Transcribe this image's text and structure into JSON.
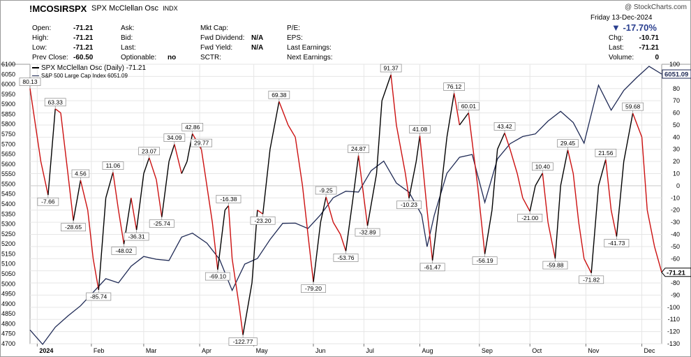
{
  "header": {
    "symbol": "!MCOSIRSPX",
    "description": "SPX McClellan Osc",
    "exchange": "INDX",
    "watermark": "@ StockCharts.com",
    "date": "Friday  13-Dec-2024",
    "change_pct": "▼ -17.70%",
    "col1": [
      {
        "label": "Open:",
        "value": "-71.21"
      },
      {
        "label": "High:",
        "value": "-71.21"
      },
      {
        "label": "Low:",
        "value": "-71.21"
      },
      {
        "label": "Prev Close:",
        "value": "-60.50"
      }
    ],
    "col2": [
      {
        "label": "Ask:",
        "value": ""
      },
      {
        "label": "Bid:",
        "value": ""
      },
      {
        "label": "Last:",
        "value": ""
      },
      {
        "label": "Optionable:",
        "value": "no"
      }
    ],
    "col3": [
      {
        "label": "Mkt Cap:",
        "value": ""
      },
      {
        "label": "Fwd Dividend:",
        "value": "N/A"
      },
      {
        "label": "Fwd Yield:",
        "value": "N/A"
      },
      {
        "label": "SCTR:",
        "value": ""
      }
    ],
    "col4": [
      {
        "label": "P/E:"
      },
      {
        "label": "EPS:"
      },
      {
        "label": "Last Earnings:"
      },
      {
        "label": "Next Earnings:"
      }
    ],
    "col5": [
      {
        "label": "Chg:",
        "value": "-10.71"
      },
      {
        "label": "Last:",
        "value": "-71.21"
      },
      {
        "label": "Volume:",
        "value": "0"
      }
    ]
  },
  "legend": {
    "osc": "SPX McClellan Osc (Daily) -71.21",
    "spx": "S&P 500 Large Cap Index 6051.09"
  },
  "colors": {
    "up": "#000000",
    "down": "#cc1010",
    "spx": "#1f2a55",
    "grid": "#e6e6e6"
  },
  "chart_data": {
    "type": "line",
    "x_labels": [
      "2024",
      "Feb",
      "Mar",
      "Apr",
      "May",
      "Jun",
      "Jul",
      "Aug",
      "Sep",
      "Oct",
      "Nov",
      "Dec"
    ],
    "y_right": {
      "range": [
        -130,
        100
      ],
      "ticks": [
        100,
        90,
        80,
        70,
        60,
        50,
        40,
        30,
        20,
        10,
        0,
        -10,
        -20,
        -30,
        -40,
        -50,
        -60,
        -70,
        -80,
        -90,
        -100,
        -110,
        -120,
        -130
      ]
    },
    "y_left": {
      "range": [
        4700,
        6100
      ],
      "ticks": [
        6100,
        6050,
        6000,
        5950,
        5900,
        5850,
        5800,
        5750,
        5700,
        5650,
        5600,
        5550,
        5500,
        5450,
        5400,
        5350,
        5300,
        5250,
        5200,
        5150,
        5100,
        5050,
        5000,
        4950,
        4900,
        4850,
        4800,
        4750,
        4700
      ]
    },
    "series": [
      {
        "name": "SPX McClellan Osc (Daily)",
        "last_label": "-71.21",
        "points": [
          [
            "2023-12-29",
            80.13
          ],
          [
            "2024-01-04",
            20
          ],
          [
            "2024-01-08",
            -7.66
          ],
          [
            "2024-01-12",
            63.33
          ],
          [
            "2024-01-15",
            60
          ],
          [
            "2024-01-19",
            10
          ],
          [
            "2024-01-22",
            -28.65
          ],
          [
            "2024-01-26",
            4.56
          ],
          [
            "2024-01-30",
            -20
          ],
          [
            "2024-02-02",
            -60
          ],
          [
            "2024-02-05",
            -85.74
          ],
          [
            "2024-02-09",
            -10
          ],
          [
            "2024-02-13",
            11.06
          ],
          [
            "2024-02-16",
            -20
          ],
          [
            "2024-02-19",
            -48.02
          ],
          [
            "2024-02-23",
            -10
          ],
          [
            "2024-02-26",
            -36.31
          ],
          [
            "2024-03-01",
            10
          ],
          [
            "2024-03-04",
            23.07
          ],
          [
            "2024-03-08",
            5
          ],
          [
            "2024-03-11",
            -25.74
          ],
          [
            "2024-03-15",
            20
          ],
          [
            "2024-03-18",
            34.09
          ],
          [
            "2024-03-22",
            10
          ],
          [
            "2024-03-25",
            20
          ],
          [
            "2024-03-28",
            42.86
          ],
          [
            "2024-04-02",
            29.77
          ],
          [
            "2024-04-04",
            10
          ],
          [
            "2024-04-08",
            -30
          ],
          [
            "2024-04-11",
            -69.1
          ],
          [
            "2024-04-15",
            -20
          ],
          [
            "2024-04-17",
            -16.38
          ],
          [
            "2024-04-19",
            -60
          ],
          [
            "2024-04-23",
            -100
          ],
          [
            "2024-04-25",
            -122.77
          ],
          [
            "2024-04-30",
            -80
          ],
          [
            "2024-05-03",
            -20
          ],
          [
            "2024-05-06",
            -23.2
          ],
          [
            "2024-05-10",
            30
          ],
          [
            "2024-05-15",
            69.38
          ],
          [
            "2024-05-20",
            50
          ],
          [
            "2024-05-24",
            40
          ],
          [
            "2024-05-28",
            0
          ],
          [
            "2024-05-31",
            -40
          ],
          [
            "2024-06-03",
            -79.2
          ],
          [
            "2024-06-07",
            -30
          ],
          [
            "2024-06-10",
            -9.25
          ],
          [
            "2024-06-14",
            -30
          ],
          [
            "2024-06-18",
            -40
          ],
          [
            "2024-06-21",
            -53.76
          ],
          [
            "2024-06-25",
            -10
          ],
          [
            "2024-06-28",
            24.87
          ],
          [
            "2024-07-01",
            -10
          ],
          [
            "2024-07-03",
            -32.89
          ],
          [
            "2024-07-08",
            10
          ],
          [
            "2024-07-11",
            70
          ],
          [
            "2024-07-16",
            91.37
          ],
          [
            "2024-07-19",
            50
          ],
          [
            "2024-07-24",
            10
          ],
          [
            "2024-07-26",
            -10.23
          ],
          [
            "2024-07-30",
            20
          ],
          [
            "2024-08-01",
            41.08
          ],
          [
            "2024-08-05",
            -20
          ],
          [
            "2024-08-08",
            -61.47
          ],
          [
            "2024-08-13",
            0
          ],
          [
            "2024-08-16",
            40
          ],
          [
            "2024-08-20",
            76.12
          ],
          [
            "2024-08-23",
            50
          ],
          [
            "2024-08-28",
            60.01
          ],
          [
            "2024-09-02",
            0
          ],
          [
            "2024-09-06",
            -56.19
          ],
          [
            "2024-09-10",
            -20
          ],
          [
            "2024-09-13",
            30
          ],
          [
            "2024-09-17",
            43.42
          ],
          [
            "2024-09-20",
            30
          ],
          [
            "2024-09-24",
            10
          ],
          [
            "2024-09-27",
            -10
          ],
          [
            "2024-10-01",
            -21.0
          ],
          [
            "2024-10-04",
            0
          ],
          [
            "2024-10-08",
            10.4
          ],
          [
            "2024-10-11",
            -30
          ],
          [
            "2024-10-15",
            -59.88
          ],
          [
            "2024-10-18",
            0
          ],
          [
            "2024-10-22",
            29.45
          ],
          [
            "2024-10-25",
            10
          ],
          [
            "2024-10-28",
            -30
          ],
          [
            "2024-10-31",
            -60
          ],
          [
            "2024-11-04",
            -71.82
          ],
          [
            "2024-11-08",
            0
          ],
          [
            "2024-11-12",
            21.56
          ],
          [
            "2024-11-15",
            -20
          ],
          [
            "2024-11-18",
            -41.73
          ],
          [
            "2024-11-22",
            20
          ],
          [
            "2024-11-27",
            59.68
          ],
          [
            "2024-12-02",
            40
          ],
          [
            "2024-12-05",
            -20
          ],
          [
            "2024-12-09",
            -50
          ],
          [
            "2024-12-13",
            -71.21
          ]
        ]
      },
      {
        "name": "S&P 500 Large Cap Index",
        "last_label": "6051.09",
        "points": [
          [
            "2023-12-29",
            4769
          ],
          [
            "2024-01-05",
            4697
          ],
          [
            "2024-01-12",
            4783
          ],
          [
            "2024-01-19",
            4839
          ],
          [
            "2024-01-26",
            4890
          ],
          [
            "2024-02-02",
            4958
          ],
          [
            "2024-02-09",
            5026
          ],
          [
            "2024-02-16",
            5005
          ],
          [
            "2024-02-23",
            5088
          ],
          [
            "2024-03-01",
            5137
          ],
          [
            "2024-03-08",
            5123
          ],
          [
            "2024-03-15",
            5117
          ],
          [
            "2024-03-22",
            5234
          ],
          [
            "2024-03-28",
            5254
          ],
          [
            "2024-04-05",
            5204
          ],
          [
            "2024-04-12",
            5123
          ],
          [
            "2024-04-19",
            4967
          ],
          [
            "2024-04-26",
            5099
          ],
          [
            "2024-05-03",
            5127
          ],
          [
            "2024-05-10",
            5222
          ],
          [
            "2024-05-17",
            5303
          ],
          [
            "2024-05-24",
            5304
          ],
          [
            "2024-05-31",
            5277
          ],
          [
            "2024-06-07",
            5346
          ],
          [
            "2024-06-14",
            5431
          ],
          [
            "2024-06-21",
            5464
          ],
          [
            "2024-06-28",
            5460
          ],
          [
            "2024-07-05",
            5567
          ],
          [
            "2024-07-12",
            5615
          ],
          [
            "2024-07-19",
            5505
          ],
          [
            "2024-07-26",
            5459
          ],
          [
            "2024-08-02",
            5346
          ],
          [
            "2024-08-05",
            5186
          ],
          [
            "2024-08-09",
            5344
          ],
          [
            "2024-08-16",
            5554
          ],
          [
            "2024-08-23",
            5634
          ],
          [
            "2024-08-30",
            5648
          ],
          [
            "2024-09-06",
            5408
          ],
          [
            "2024-09-13",
            5626
          ],
          [
            "2024-09-20",
            5702
          ],
          [
            "2024-09-27",
            5738
          ],
          [
            "2024-10-04",
            5751
          ],
          [
            "2024-10-11",
            5815
          ],
          [
            "2024-10-18",
            5864
          ],
          [
            "2024-10-25",
            5808
          ],
          [
            "2024-10-31",
            5705
          ],
          [
            "2024-11-08",
            5995
          ],
          [
            "2024-11-15",
            5870
          ],
          [
            "2024-11-22",
            5969
          ],
          [
            "2024-11-29",
            6032
          ],
          [
            "2024-12-06",
            6090
          ],
          [
            "2024-12-13",
            6051
          ]
        ]
      }
    ],
    "annotations": [
      {
        "date": "2023-12-29",
        "value": 80.13,
        "label": "80.13",
        "pos": "above"
      },
      {
        "date": "2024-01-08",
        "value": -7.66,
        "label": "-7.66",
        "pos": "below"
      },
      {
        "date": "2024-01-12",
        "value": 63.33,
        "label": "63.33",
        "pos": "above"
      },
      {
        "date": "2024-01-22",
        "value": -28.65,
        "label": "-28.65",
        "pos": "below"
      },
      {
        "date": "2024-01-26",
        "value": 4.56,
        "label": "4.56",
        "pos": "above"
      },
      {
        "date": "2024-02-05",
        "value": -85.74,
        "label": "-85.74",
        "pos": "below"
      },
      {
        "date": "2024-02-13",
        "value": 11.06,
        "label": "11.06",
        "pos": "above"
      },
      {
        "date": "2024-02-19",
        "value": -48.02,
        "label": "-48.02",
        "pos": "below"
      },
      {
        "date": "2024-02-26",
        "value": -36.31,
        "label": "-36.31",
        "pos": "below"
      },
      {
        "date": "2024-03-04",
        "value": 23.07,
        "label": "23.07",
        "pos": "above"
      },
      {
        "date": "2024-03-11",
        "value": -25.74,
        "label": "-25.74",
        "pos": "below"
      },
      {
        "date": "2024-03-18",
        "value": 34.09,
        "label": "34.09",
        "pos": "above"
      },
      {
        "date": "2024-03-28",
        "value": 42.86,
        "label": "42.86",
        "pos": "above"
      },
      {
        "date": "2024-04-02",
        "value": 29.77,
        "label": "29.77",
        "pos": "above"
      },
      {
        "date": "2024-04-11",
        "value": -69.1,
        "label": "-69.10",
        "pos": "below"
      },
      {
        "date": "2024-04-17",
        "value": -16.38,
        "label": "-16.38",
        "pos": "above"
      },
      {
        "date": "2024-04-25",
        "value": -122.77,
        "label": "-122.77",
        "pos": "below"
      },
      {
        "date": "2024-05-06",
        "value": -23.2,
        "label": "-23.20",
        "pos": "below"
      },
      {
        "date": "2024-05-15",
        "value": 69.38,
        "label": "69.38",
        "pos": "above"
      },
      {
        "date": "2024-06-03",
        "value": -79.2,
        "label": "-79.20",
        "pos": "below"
      },
      {
        "date": "2024-06-10",
        "value": -9.25,
        "label": "-9.25",
        "pos": "above"
      },
      {
        "date": "2024-06-21",
        "value": -53.76,
        "label": "-53.76",
        "pos": "below"
      },
      {
        "date": "2024-06-28",
        "value": 24.87,
        "label": "24.87",
        "pos": "above"
      },
      {
        "date": "2024-07-03",
        "value": -32.89,
        "label": "-32.89",
        "pos": "below"
      },
      {
        "date": "2024-07-16",
        "value": 91.37,
        "label": "91.37",
        "pos": "above"
      },
      {
        "date": "2024-07-26",
        "value": -10.23,
        "label": "-10.23",
        "pos": "below"
      },
      {
        "date": "2024-08-01",
        "value": 41.08,
        "label": "41.08",
        "pos": "above"
      },
      {
        "date": "2024-08-08",
        "value": -61.47,
        "label": "-61.47",
        "pos": "below"
      },
      {
        "date": "2024-08-20",
        "value": 76.12,
        "label": "76.12",
        "pos": "above"
      },
      {
        "date": "2024-08-28",
        "value": 60.01,
        "label": "60.01",
        "pos": "above"
      },
      {
        "date": "2024-09-06",
        "value": -56.19,
        "label": "-56.19",
        "pos": "below"
      },
      {
        "date": "2024-09-17",
        "value": 43.42,
        "label": "43.42",
        "pos": "above"
      },
      {
        "date": "2024-10-01",
        "value": -21.0,
        "label": "-21.00",
        "pos": "below"
      },
      {
        "date": "2024-10-08",
        "value": 10.4,
        "label": "10.40",
        "pos": "above"
      },
      {
        "date": "2024-10-15",
        "value": -59.88,
        "label": "-59.88",
        "pos": "below"
      },
      {
        "date": "2024-10-22",
        "value": 29.45,
        "label": "29.45",
        "pos": "above"
      },
      {
        "date": "2024-11-04",
        "value": -71.82,
        "label": "-71.82",
        "pos": "below"
      },
      {
        "date": "2024-11-12",
        "value": 21.56,
        "label": "21.56",
        "pos": "above"
      },
      {
        "date": "2024-11-18",
        "value": -41.73,
        "label": "-41.73",
        "pos": "below"
      },
      {
        "date": "2024-11-27",
        "value": 59.68,
        "label": "59.68",
        "pos": "above"
      }
    ]
  }
}
